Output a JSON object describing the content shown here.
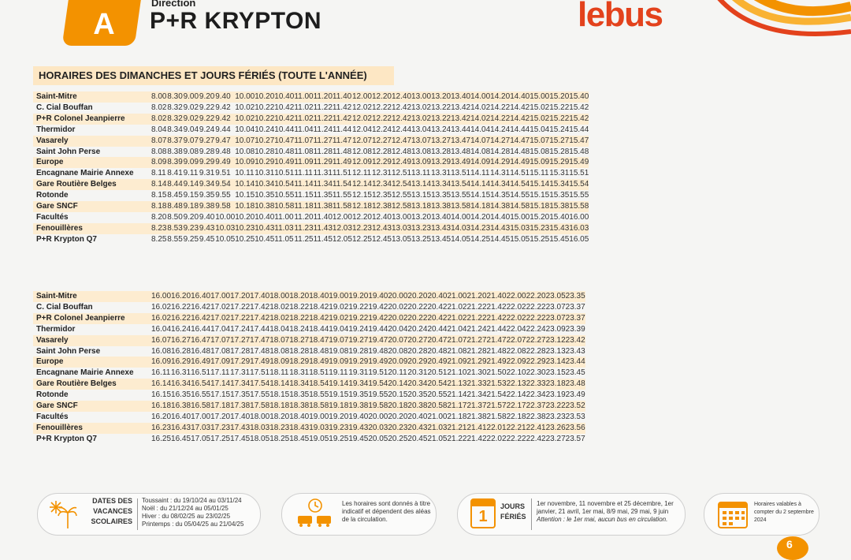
{
  "header": {
    "line": "A",
    "direction_label": "Direction",
    "direction_name": "P+R KRYPTON",
    "logo_le": "le",
    "logo_bus": "bus"
  },
  "section_title": "HORAIRES DES DIMANCHES ET JOURS FÉRIÉS (TOUTE L'ANNÉE)",
  "stops": [
    "Saint-Mitre",
    "C. Cial Bouffan",
    "P+R Colonel Jeanpierre",
    "Thermidor",
    "Vasarely",
    "Saint John Perse",
    "Europe",
    "Encagnane Mairie Annexe",
    "Gare Routière Belges",
    "Rotonde",
    "Gare SNCF",
    "Facultés",
    "Fenouillères",
    "P+R Krypton Q7"
  ],
  "morning_times": [
    [
      "8.00",
      "8.30",
      "9.00",
      "9.20",
      "9.40",
      "10.00",
      "10.20",
      "10.40",
      "11.00",
      "11.20",
      "11.40",
      "12.00",
      "12.20",
      "12.40",
      "13.00",
      "13.20",
      "13.40",
      "14.00",
      "14.20",
      "14.40",
      "15.00",
      "15.20",
      "15.40"
    ],
    [
      "8.02",
      "8.32",
      "9.02",
      "9.22",
      "9.42",
      "10.02",
      "10.22",
      "10.42",
      "11.02",
      "11.22",
      "11.42",
      "12.02",
      "12.22",
      "12.42",
      "13.02",
      "13.22",
      "13.42",
      "14.02",
      "14.22",
      "14.42",
      "15.02",
      "15.22",
      "15.42"
    ],
    [
      "8.02",
      "8.32",
      "9.02",
      "9.22",
      "9.42",
      "10.02",
      "10.22",
      "10.42",
      "11.02",
      "11.22",
      "11.42",
      "12.02",
      "12.22",
      "12.42",
      "13.02",
      "13.22",
      "13.42",
      "14.02",
      "14.22",
      "14.42",
      "15.02",
      "15.22",
      "15.42"
    ],
    [
      "8.04",
      "8.34",
      "9.04",
      "9.24",
      "9.44",
      "10.04",
      "10.24",
      "10.44",
      "11.04",
      "11.24",
      "11.44",
      "12.04",
      "12.24",
      "12.44",
      "13.04",
      "13.24",
      "13.44",
      "14.04",
      "14.24",
      "14.44",
      "15.04",
      "15.24",
      "15.44"
    ],
    [
      "8.07",
      "8.37",
      "9.07",
      "9.27",
      "9.47",
      "10.07",
      "10.27",
      "10.47",
      "11.07",
      "11.27",
      "11.47",
      "12.07",
      "12.27",
      "12.47",
      "13.07",
      "13.27",
      "13.47",
      "14.07",
      "14.27",
      "14.47",
      "15.07",
      "15.27",
      "15.47"
    ],
    [
      "8.08",
      "8.38",
      "9.08",
      "9.28",
      "9.48",
      "10.08",
      "10.28",
      "10.48",
      "11.08",
      "11.28",
      "11.48",
      "12.08",
      "12.28",
      "12.48",
      "13.08",
      "13.28",
      "13.48",
      "14.08",
      "14.28",
      "14.48",
      "15.08",
      "15.28",
      "15.48"
    ],
    [
      "8.09",
      "8.39",
      "9.09",
      "9.29",
      "9.49",
      "10.09",
      "10.29",
      "10.49",
      "11.09",
      "11.29",
      "11.49",
      "12.09",
      "12.29",
      "12.49",
      "13.09",
      "13.29",
      "13.49",
      "14.09",
      "14.29",
      "14.49",
      "15.09",
      "15.29",
      "15.49"
    ],
    [
      "8.11",
      "8.41",
      "9.11",
      "9.31",
      "9.51",
      "10.11",
      "10.31",
      "10.51",
      "11.11",
      "11.31",
      "11.51",
      "12.11",
      "12.31",
      "12.51",
      "13.11",
      "13.31",
      "13.51",
      "14.11",
      "14.31",
      "14.51",
      "15.11",
      "15.31",
      "15.51"
    ],
    [
      "8.14",
      "8.44",
      "9.14",
      "9.34",
      "9.54",
      "10.14",
      "10.34",
      "10.54",
      "11.14",
      "11.34",
      "11.54",
      "12.14",
      "12.34",
      "12.54",
      "13.14",
      "13.34",
      "13.54",
      "14.14",
      "14.34",
      "14.54",
      "15.14",
      "15.34",
      "15.54"
    ],
    [
      "8.15",
      "8.45",
      "9.15",
      "9.35",
      "9.55",
      "10.15",
      "10.35",
      "10.55",
      "11.15",
      "11.35",
      "11.55",
      "12.15",
      "12.35",
      "12.55",
      "13.15",
      "13.35",
      "13.55",
      "14.15",
      "14.35",
      "14.55",
      "15.15",
      "15.35",
      "15.55"
    ],
    [
      "8.18",
      "8.48",
      "9.18",
      "9.38",
      "9.58",
      "10.18",
      "10.38",
      "10.58",
      "11.18",
      "11.38",
      "11.58",
      "12.18",
      "12.38",
      "12.58",
      "13.18",
      "13.38",
      "13.58",
      "14.18",
      "14.38",
      "14.58",
      "15.18",
      "15.38",
      "15.58"
    ],
    [
      "8.20",
      "8.50",
      "9.20",
      "9.40",
      "10.00",
      "10.20",
      "10.40",
      "11.00",
      "11.20",
      "11.40",
      "12.00",
      "12.20",
      "12.40",
      "13.00",
      "13.20",
      "13.40",
      "14.00",
      "14.20",
      "14.40",
      "15.00",
      "15.20",
      "15.40",
      "16.00"
    ],
    [
      "8.23",
      "8.53",
      "9.23",
      "9.43",
      "10.03",
      "10.23",
      "10.43",
      "11.03",
      "11.23",
      "11.43",
      "12.03",
      "12.23",
      "12.43",
      "13.03",
      "13.23",
      "13.43",
      "14.03",
      "14.23",
      "14.43",
      "15.03",
      "15.23",
      "15.43",
      "16.03"
    ],
    [
      "8.25",
      "8.55",
      "9.25",
      "9.45",
      "10.05",
      "10.25",
      "10.45",
      "11.05",
      "11.25",
      "11.45",
      "12.05",
      "12.25",
      "12.45",
      "13.05",
      "13.25",
      "13.45",
      "14.05",
      "14.25",
      "14.45",
      "15.05",
      "15.25",
      "15.45",
      "16.05"
    ]
  ],
  "evening_times": [
    [
      "16.00",
      "16.20",
      "16.40",
      "17.00",
      "17.20",
      "17.40",
      "18.00",
      "18.20",
      "18.40",
      "19.00",
      "19.20",
      "19.40",
      "20.00",
      "20.20",
      "20.40",
      "21.00",
      "21.20",
      "21.40",
      "22.00",
      "22.20",
      "23.05",
      "23.35"
    ],
    [
      "16.02",
      "16.22",
      "16.42",
      "17.02",
      "17.22",
      "17.42",
      "18.02",
      "18.22",
      "18.42",
      "19.02",
      "19.22",
      "19.42",
      "20.02",
      "20.22",
      "20.42",
      "21.02",
      "21.22",
      "21.42",
      "22.02",
      "22.22",
      "23.07",
      "23.37"
    ],
    [
      "16.02",
      "16.22",
      "16.42",
      "17.02",
      "17.22",
      "17.42",
      "18.02",
      "18.22",
      "18.42",
      "19.02",
      "19.22",
      "19.42",
      "20.02",
      "20.22",
      "20.42",
      "21.02",
      "21.22",
      "21.42",
      "22.02",
      "22.22",
      "23.07",
      "23.37"
    ],
    [
      "16.04",
      "16.24",
      "16.44",
      "17.04",
      "17.24",
      "17.44",
      "18.04",
      "18.24",
      "18.44",
      "19.04",
      "19.24",
      "19.44",
      "20.04",
      "20.24",
      "20.44",
      "21.04",
      "21.24",
      "21.44",
      "22.04",
      "22.24",
      "23.09",
      "23.39"
    ],
    [
      "16.07",
      "16.27",
      "16.47",
      "17.07",
      "17.27",
      "17.47",
      "18.07",
      "18.27",
      "18.47",
      "19.07",
      "19.27",
      "19.47",
      "20.07",
      "20.27",
      "20.47",
      "21.07",
      "21.27",
      "21.47",
      "22.07",
      "22.27",
      "23.12",
      "23.42"
    ],
    [
      "16.08",
      "16.28",
      "16.48",
      "17.08",
      "17.28",
      "17.48",
      "18.08",
      "18.28",
      "18.48",
      "19.08",
      "19.28",
      "19.48",
      "20.08",
      "20.28",
      "20.48",
      "21.08",
      "21.28",
      "21.48",
      "22.08",
      "22.28",
      "23.13",
      "23.43"
    ],
    [
      "16.09",
      "16.29",
      "16.49",
      "17.09",
      "17.29",
      "17.49",
      "18.09",
      "18.29",
      "18.49",
      "19.09",
      "19.29",
      "19.49",
      "20.09",
      "20.29",
      "20.49",
      "21.09",
      "21.29",
      "21.49",
      "22.09",
      "22.29",
      "23.14",
      "23.44"
    ],
    [
      "16.11",
      "16.31",
      "16.51",
      "17.11",
      "17.31",
      "17.51",
      "18.11",
      "18.31",
      "18.51",
      "19.11",
      "19.31",
      "19.51",
      "20.11",
      "20.31",
      "20.51",
      "21.10",
      "21.30",
      "21.50",
      "22.10",
      "22.30",
      "23.15",
      "23.45"
    ],
    [
      "16.14",
      "16.34",
      "16.54",
      "17.14",
      "17.34",
      "17.54",
      "18.14",
      "18.34",
      "18.54",
      "19.14",
      "19.34",
      "19.54",
      "20.14",
      "20.34",
      "20.54",
      "21.13",
      "21.33",
      "21.53",
      "22.13",
      "22.33",
      "23.18",
      "23.48"
    ],
    [
      "16.15",
      "16.35",
      "16.55",
      "17.15",
      "17.35",
      "17.55",
      "18.15",
      "18.35",
      "18.55",
      "19.15",
      "19.35",
      "19.55",
      "20.15",
      "20.35",
      "20.55",
      "21.14",
      "21.34",
      "21.54",
      "22.14",
      "22.34",
      "23.19",
      "23.49"
    ],
    [
      "16.18",
      "16.38",
      "16.58",
      "17.18",
      "17.38",
      "17.58",
      "18.18",
      "18.38",
      "18.58",
      "19.18",
      "19.38",
      "19.58",
      "20.18",
      "20.38",
      "20.58",
      "21.17",
      "21.37",
      "21.57",
      "22.17",
      "22.37",
      "23.22",
      "23.52"
    ],
    [
      "16.20",
      "16.40",
      "17.00",
      "17.20",
      "17.40",
      "18.00",
      "18.20",
      "18.40",
      "19.00",
      "19.20",
      "19.40",
      "20.00",
      "20.20",
      "20.40",
      "21.00",
      "21.18",
      "21.38",
      "21.58",
      "22.18",
      "22.38",
      "23.23",
      "23.53"
    ],
    [
      "16.23",
      "16.43",
      "17.03",
      "17.23",
      "17.43",
      "18.03",
      "18.23",
      "18.43",
      "19.03",
      "19.23",
      "19.43",
      "20.03",
      "20.23",
      "20.43",
      "21.03",
      "21.21",
      "21.41",
      "22.01",
      "22.21",
      "22.41",
      "23.26",
      "23.56"
    ],
    [
      "16.25",
      "16.45",
      "17.05",
      "17.25",
      "17.45",
      "18.05",
      "18.25",
      "18.45",
      "19.05",
      "19.25",
      "19.45",
      "20.05",
      "20.25",
      "20.45",
      "21.05",
      "21.22",
      "21.42",
      "22.02",
      "22.22",
      "22.42",
      "23.27",
      "23.57"
    ]
  ],
  "footer": {
    "holidays_title_1": "DATES DES",
    "holidays_title_2": "VACANCES",
    "holidays_title_3": "SCOLAIRES",
    "holidays_lines": [
      "Toussaint : du 19/10/24 au 03/11/24",
      "Noël : du 21/12/24 au 05/01/25",
      "Hiver : du 08/02/25 au 23/02/25",
      "Printemps : du 05/04/25 au 21/04/25"
    ],
    "traffic_lines": [
      "Les horaires sont donnés à titre",
      "indicatif et dépendent des aléas",
      "de la circulation."
    ],
    "holidays_box_title_1": "JOURS",
    "holidays_box_title_2": "FÉRIÉS",
    "holidays_box_day": "1",
    "public_holidays_lines": [
      "1er novembre, 11 novembre et 25 décembre, 1er",
      "janvier, 21 avril, 1er mai, 8/9 mai, 29 mai, 9 juin"
    ],
    "public_holidays_note": "Attention : le 1er mai, aucun bus en circulation.",
    "validity_lines": [
      "Horaires valables à",
      "compter du 2 septembre",
      "2024"
    ],
    "page_number": "6"
  },
  "colors": {
    "orange": "#f39200",
    "red": "#e3421c",
    "stripe": "#fdecd0",
    "title_bg": "#fde7c4"
  },
  "icons": [
    "sun-snowflake-palm-icon",
    "clock-bus-traffic-icon",
    "calendar-day-icon",
    "calendar-grid-icon"
  ]
}
